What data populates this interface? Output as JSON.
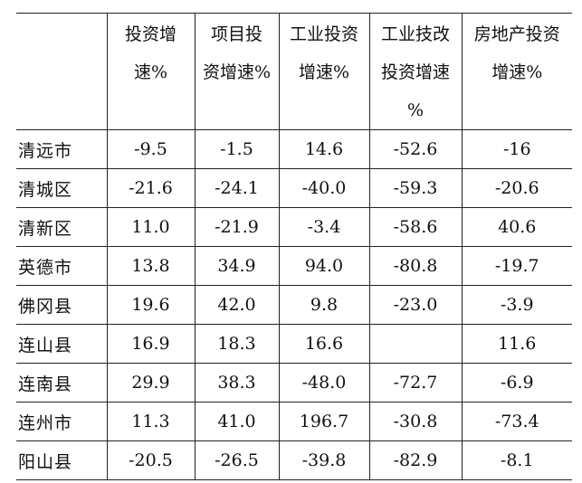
{
  "table": {
    "header": [
      null,
      [
        "投资增",
        "速%"
      ],
      [
        "项目投",
        "资增速%"
      ],
      [
        "工业投资",
        "增速%"
      ],
      [
        "工业技改",
        "投资增速",
        "%"
      ],
      [
        "房地产投资",
        "增速%"
      ]
    ],
    "rows": [
      [
        "清远市",
        "-9.5",
        "-1.5",
        "14.6",
        "-52.6",
        "-16"
      ],
      [
        "清城区",
        "-21.6",
        "-24.1",
        "-40.0",
        "-59.3",
        "-20.6"
      ],
      [
        "清新区",
        "11.0",
        "-21.9",
        "-3.4",
        "-58.6",
        "40.6"
      ],
      [
        "英德市",
        "13.8",
        "34.9",
        "94.0",
        "-80.8",
        "-19.7"
      ],
      [
        "佛冈县",
        "19.6",
        "42.0",
        "9.8",
        "-23.0",
        "-3.9"
      ],
      [
        "连山县",
        "16.9",
        "18.3",
        "16.6",
        null,
        "11.6"
      ],
      [
        "连南县",
        "29.9",
        "38.3",
        "-48.0",
        "-72.7",
        "-6.9"
      ],
      [
        "连州市",
        "11.3",
        "41.0",
        "196.7",
        "-30.8",
        "-73.4"
      ],
      [
        "阳山县",
        "-20.5",
        "-26.5",
        "-39.8",
        "-82.9",
        "-8.1"
      ]
    ]
  }
}
